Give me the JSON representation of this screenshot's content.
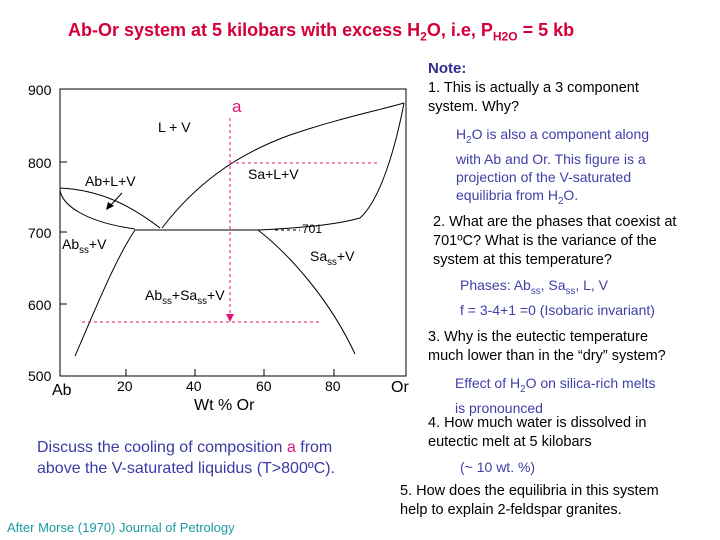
{
  "title": {
    "main": "Ab-Or system at 5 kilobars with excess H",
    "sub1": "2",
    "mid": "O, i.e, P",
    "sub2": "H2O",
    "end": " = 5 kb"
  },
  "diagram": {
    "y_ticks": [
      "900",
      "800",
      "700",
      "600",
      "500"
    ],
    "x_ticks": [
      "20",
      "40",
      "60",
      "80"
    ],
    "x_end_left": "Ab",
    "x_end_right": "Or",
    "x_axis_label": "Wt % Or",
    "composition_marker": "a",
    "eutectic_label": "701",
    "fields": {
      "l_v": "L + V",
      "ab_l_v": "Ab+L+V",
      "sa_l_v": "Sa+L+V",
      "ab_ss_v_pre": "Ab",
      "ab_ss_v_sub": "ss",
      "ab_ss_v_post": "+V",
      "sa_ss_v_pre": "Sa",
      "sa_ss_v_sub": "ss",
      "sa_ss_v_post": "+V",
      "two_phase_pre": "Ab",
      "two_phase_sub1": "ss",
      "two_phase_mid": "+Sa",
      "two_phase_sub2": "ss",
      "two_phase_post": "+V"
    }
  },
  "notes": {
    "heading": "Note:",
    "q1_line1": "1.  This is actually a 3 component",
    "q1_line2": "system.  Why?",
    "a1_line1_pre": "H",
    "a1_line1_sub": "2",
    "a1_line1_post": "O is also a component along",
    "a1_line2": "with Ab and Or.  This figure is a",
    "a1_line3": "projection of the V-saturated",
    "a1_line4_pre": "equilibria from H",
    "a1_line4_sub": "2",
    "a1_line4_post": "O.",
    "q2_line1": "2. What are  the phases that coexist at",
    "q2_line2": "701ºC?  What is the variance of the",
    "q2_line3": "system at this temperature?",
    "a2_line1_pre": "Phases: Ab",
    "a2_line1_sub1": "ss",
    "a2_line1_mid": ", Sa",
    "a2_line1_sub2": "ss",
    "a2_line1_post": ", L, V",
    "a2_line2": "f = 3-4+1 =0 (Isobaric invariant)",
    "q3_line1": "3.  Why is the eutectic temperature",
    "q3_line2": "much lower than in the “dry” system?",
    "a3_line1_pre": "Effect of H",
    "a3_line1_sub": "2",
    "a3_line1_post": "O on silica-rich melts",
    "a3_line2": "is pronounced",
    "q4_line1": "4.  How much water is dissolved in",
    "q4_line2": "eutectic melt at 5 kilobars",
    "a4": "(~ 10 wt. %)",
    "q5_line1": "5.  How does the equilibria in this system",
    "q5_line2": "help to explain 2-feldspar granites."
  },
  "discussion": {
    "pre": "Discuss the cooling of composition ",
    "a": "a",
    "mid": " from",
    "line2": "above the V-saturated liquidus (T>800ºC)."
  },
  "credit": "After Morse (1970) Journal of Petrology",
  "colors": {
    "title": "#d4003a",
    "answer": "#3f3fa8",
    "marker": "#e0157a",
    "credit": "#1a9aa0"
  }
}
